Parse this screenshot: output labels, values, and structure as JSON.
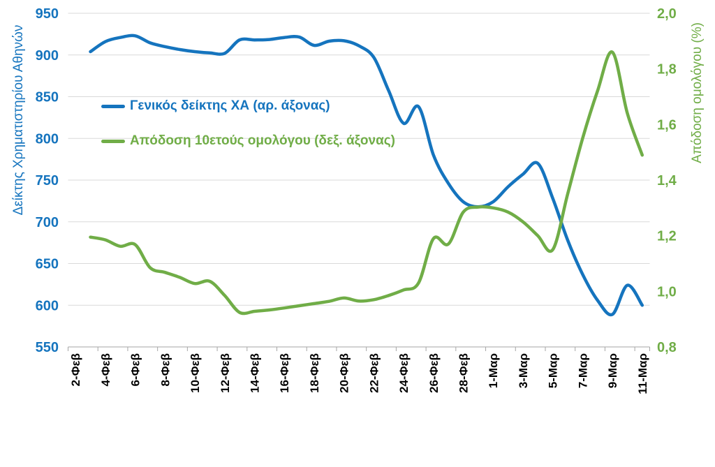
{
  "chart_data": {
    "type": "line",
    "title": "",
    "num_days": 39,
    "x_labels": [
      "2-Φεβ",
      "4-Φεβ",
      "6-Φεβ",
      "8-Φεβ",
      "10-Φεβ",
      "12-Φεβ",
      "14-Φεβ",
      "16-Φεβ",
      "18-Φεβ",
      "20-Φεβ",
      "22-Φεβ",
      "24-Φεβ",
      "26-Φεβ",
      "28-Φεβ",
      "1-Μαρ",
      "3-Μαρ",
      "5-Μαρ",
      "7-Μαρ",
      "9-Μαρ",
      "11-Μαρ"
    ],
    "x_label_every_n_days": 2,
    "grid": true,
    "gridline_color": "#D9D9D9",
    "axis_line_color": "#A6A6A6",
    "x_tick_label_color": "#000000",
    "legend_position": "inside-top-left",
    "left_axis": {
      "title": "Δείκτης Χρηματιστηρίου Αθηνών",
      "min": 550,
      "max": 950,
      "tick_step": 50,
      "ticks": [
        950,
        900,
        850,
        800,
        750,
        700,
        650,
        600,
        550
      ],
      "color": "#1574BE"
    },
    "right_axis": {
      "title": "Απόδοση ομολόγου (%)",
      "min": 0.8,
      "max": 2.0,
      "tick_step": 0.2,
      "tick_labels": [
        "2,0",
        "1,8",
        "1,6",
        "1,4",
        "1,2",
        "1,0",
        "0,8"
      ],
      "tick_values": [
        2.0,
        1.8,
        1.6,
        1.4,
        1.2,
        1.0,
        0.8
      ],
      "color": "#70AD47"
    },
    "series": [
      {
        "name": "Γενικός δείκτης ΧΑ (αρ. άξονας)",
        "axis": "left",
        "color": "#1574BE",
        "values": [
          null,
          904,
          916,
          921,
          923,
          914.5,
          910,
          906.5,
          904,
          902.5,
          902,
          918,
          918,
          918.5,
          921,
          921.5,
          911.5,
          916.5,
          917,
          911,
          897,
          857,
          818,
          838,
          780,
          746,
          724,
          718,
          724,
          742,
          757,
          770,
          728,
          678,
          637,
          606,
          589,
          624,
          600
        ]
      },
      {
        "name": "Απόδοση 10ετούς ομολόγου (δεξ. άξονας)",
        "axis": "right",
        "color": "#70AD47",
        "values": [
          null,
          1.195,
          1.185,
          1.162,
          1.168,
          1.085,
          1.068,
          1.05,
          1.028,
          1.036,
          0.985,
          0.924,
          0.928,
          0.933,
          0.94,
          0.948,
          0.956,
          0.964,
          0.976,
          0.965,
          0.97,
          0.985,
          1.005,
          1.03,
          1.19,
          1.17,
          1.285,
          1.303,
          1.3,
          1.285,
          1.25,
          1.2,
          1.15,
          1.35,
          1.55,
          1.72,
          1.86,
          1.64,
          1.49
        ]
      }
    ]
  }
}
